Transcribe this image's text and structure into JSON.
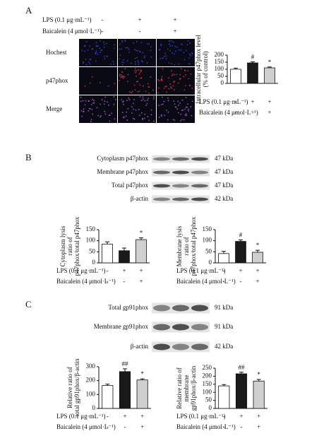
{
  "panel_a": {
    "label": "A",
    "treatments": [
      {
        "name": "LPS (0.1 μg·mL⁻¹)",
        "marks": [
          "-",
          "+",
          "+"
        ]
      },
      {
        "name": "Baicalein (4 μmol·L⁻¹)",
        "marks": [
          "-",
          "-",
          "+"
        ]
      }
    ],
    "image_rows": [
      "Hochest",
      "p47phox",
      "Merge"
    ]
  },
  "panel_b": {
    "label": "B",
    "blots": [
      {
        "name": "Cytoplasm p47phox",
        "size": "47 kDa"
      },
      {
        "name": "Membrane p47phox",
        "size": "47 kDa"
      },
      {
        "name": "Total p47phox",
        "size": "47 kDa"
      },
      {
        "name": "β-actin",
        "size": "42 kDa"
      }
    ]
  },
  "panel_c": {
    "label": "C",
    "blots": [
      {
        "name": "Total gp91phox",
        "size": "91 kDa"
      },
      {
        "name": "Membrane gp91phox",
        "size": "91 kDa"
      },
      {
        "name": "β-actin",
        "size": "42 kDa"
      }
    ]
  },
  "chart_data": [
    {
      "type": "bar",
      "ylabel_lines": [
        "Intracellular p47phox level",
        "(% of control)"
      ],
      "values": [
        100,
        145,
        110
      ],
      "errors": [
        8,
        8,
        6
      ],
      "bar_colors": [
        "#ffffff",
        "#1a1a1a",
        "#cfcfcf"
      ],
      "annotations": [
        null,
        "#",
        "*"
      ],
      "ylim": [
        0,
        200
      ],
      "yticks": [
        0,
        50,
        100,
        150,
        200
      ],
      "treatments": [
        {
          "name": "LPS (0.1 μg·mL⁻¹)",
          "marks": [
            "-",
            "+",
            "+"
          ]
        },
        {
          "name": "Baicalein (4 μmol·L⁻¹)",
          "marks": [
            "-",
            "-",
            "+"
          ]
        }
      ]
    },
    {
      "type": "bar",
      "ylabel_lines": [
        "Cytoplasm lysis",
        "ratio of",
        "p47phox/total p47phox"
      ],
      "values": [
        85,
        55,
        105
      ],
      "errors": [
        10,
        12,
        8
      ],
      "bar_colors": [
        "#ffffff",
        "#1a1a1a",
        "#cfcfcf"
      ],
      "annotations": [
        null,
        null,
        "*"
      ],
      "ylim": [
        0,
        150
      ],
      "yticks": [
        0,
        50,
        100,
        150
      ],
      "treatments": [
        {
          "name": "LPS (0.1 μg·mL⁻¹)",
          "marks": [
            "-",
            "+",
            "+"
          ]
        },
        {
          "name": "Baicalein (4 μmol·L⁻¹)",
          "marks": [
            "-",
            "-",
            "+"
          ]
        }
      ]
    },
    {
      "type": "bar",
      "ylabel_lines": [
        "Membrane lysis",
        "ratio of",
        "p47phox/total p47phox"
      ],
      "values": [
        42,
        97,
        48
      ],
      "errors": [
        10,
        7,
        9
      ],
      "bar_colors": [
        "#ffffff",
        "#1a1a1a",
        "#cfcfcf"
      ],
      "annotations": [
        null,
        "#",
        "*"
      ],
      "ylim": [
        0,
        150
      ],
      "yticks": [
        0,
        50,
        100,
        150
      ],
      "treatments": [
        {
          "name": "LPS (0.1 μg·mL⁻¹)",
          "marks": [
            "-",
            "+",
            "+"
          ]
        },
        {
          "name": "Baicalein (4 μmol·L⁻¹)",
          "marks": [
            "-",
            "-",
            "+"
          ]
        }
      ]
    },
    {
      "type": "bar",
      "ylabel_lines": [
        "Relative ratio of",
        "total gp91phox/β-actin"
      ],
      "values": [
        165,
        265,
        205
      ],
      "errors": [
        10,
        20,
        8
      ],
      "bar_colors": [
        "#ffffff",
        "#1a1a1a",
        "#cfcfcf"
      ],
      "annotations": [
        null,
        "##",
        "*"
      ],
      "ylim": [
        0,
        300
      ],
      "yticks": [
        0,
        100,
        200,
        300
      ],
      "treatments": [
        {
          "name": "LPS (0.1 μg·mL⁻¹)",
          "marks": [
            "-",
            "+",
            "+"
          ]
        },
        {
          "name": "Baicalein (4 μmol·L⁻¹)",
          "marks": [
            "-",
            "-",
            "+"
          ]
        }
      ]
    },
    {
      "type": "bar",
      "ylabel_lines": [
        "Relative ratio of",
        "membrane",
        "gp91phox/β-actin"
      ],
      "values": [
        140,
        215,
        170
      ],
      "errors": [
        8,
        10,
        10
      ],
      "bar_colors": [
        "#ffffff",
        "#1a1a1a",
        "#cfcfcf"
      ],
      "annotations": [
        null,
        "##",
        "*"
      ],
      "ylim": [
        0,
        250
      ],
      "yticks": [
        0,
        50,
        100,
        150,
        200,
        250
      ],
      "treatments": [
        {
          "name": "LPS (0.1 μg·mL⁻¹)",
          "marks": [
            "-",
            "+",
            "+"
          ]
        },
        {
          "name": "Baicalein (4 μmol·L⁻¹)",
          "marks": [
            "-",
            "-",
            "+"
          ]
        }
      ]
    }
  ]
}
